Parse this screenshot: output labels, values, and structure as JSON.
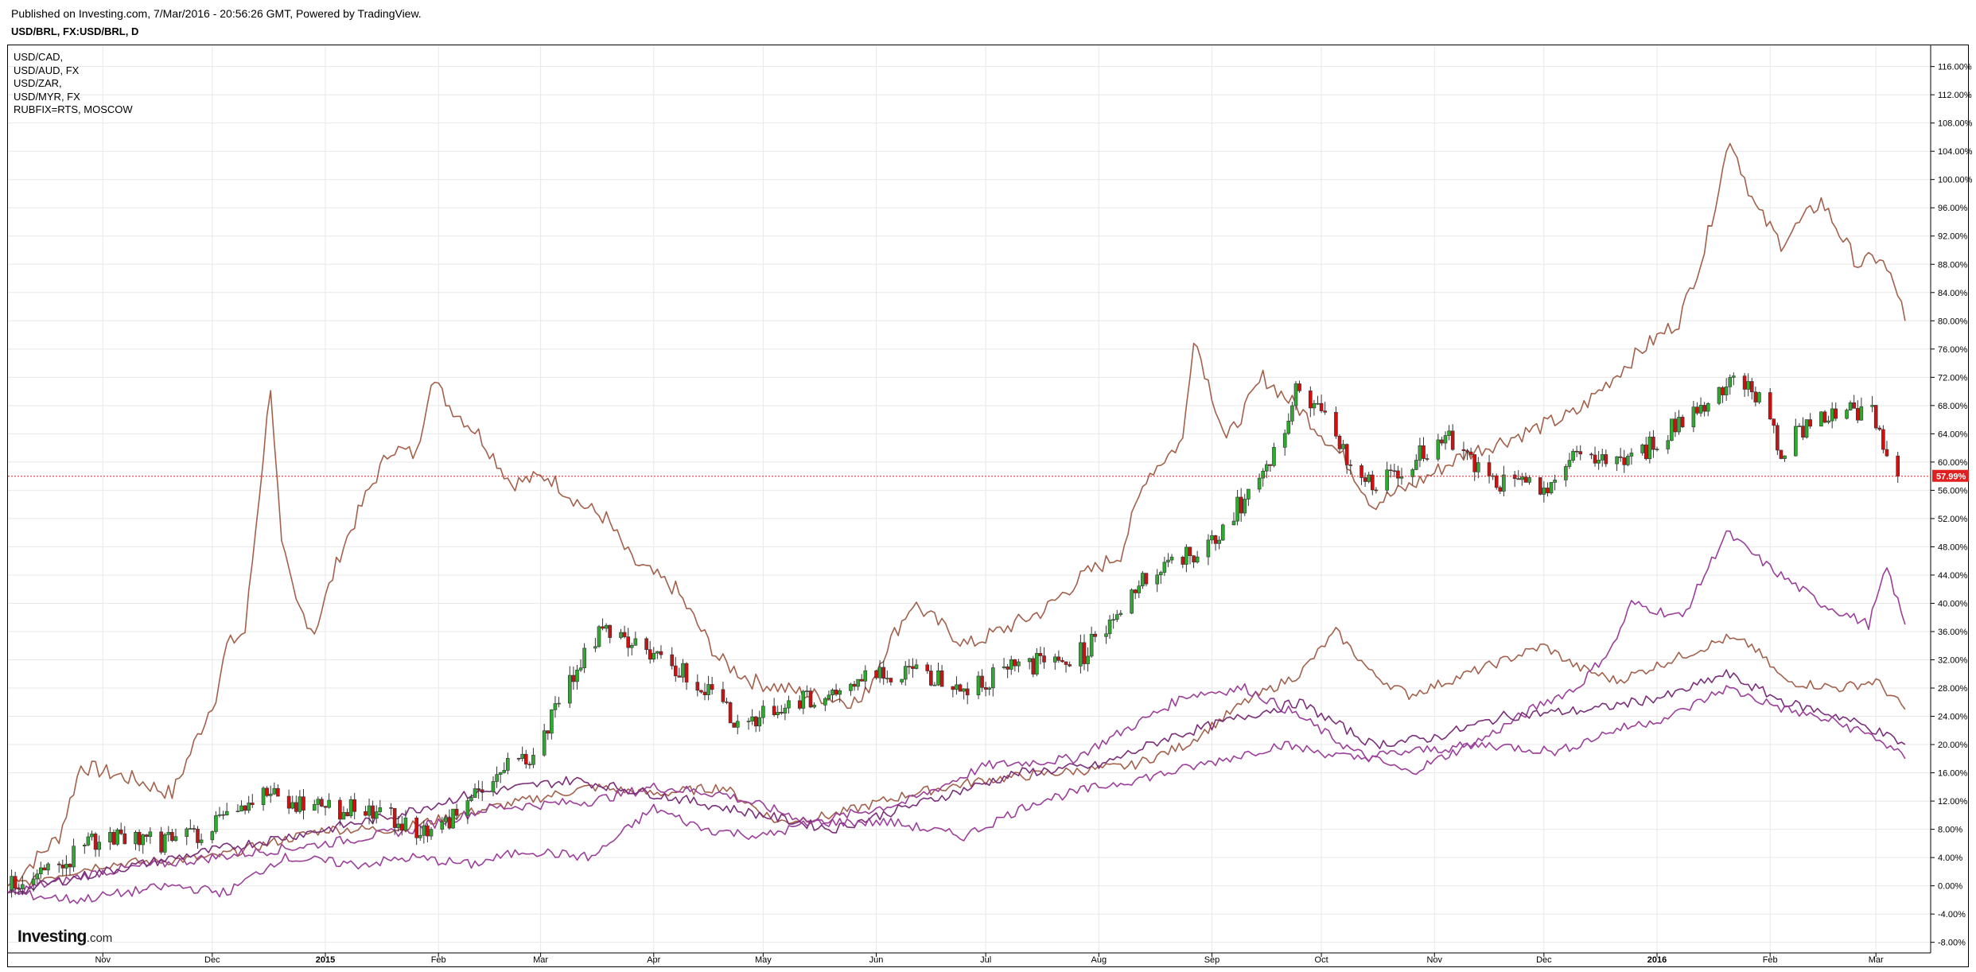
{
  "header": {
    "published": "Published on Investing.com, 7/Mar/2016 - 20:56:26 GMT, Powered by TradingView.",
    "symbol": "USD/BRL, FX:USD/BRL, D"
  },
  "logo": {
    "brand": "Investing",
    "tld": ".com"
  },
  "colors": {
    "up": "#2eaa2e",
    "down": "#cc1111",
    "grid": "#e8e8e8",
    "last_line": "#e02020",
    "last_badge": "#e02020",
    "cad": "#a3614c",
    "aud": "#a3614c",
    "zar": "#a3614c",
    "myr": "#9b3f9b",
    "rub": "#7a2e7a"
  },
  "chart_data": {
    "type": "line",
    "title": "USD/BRL, FX:USD/BRL, D",
    "ylabel": "",
    "y_unit": "%",
    "ylim": [
      -9.5,
      119
    ],
    "y_ticks": [
      -8,
      -4,
      0,
      4,
      8,
      12,
      16,
      20,
      24,
      28,
      32,
      36,
      40,
      44,
      48,
      52,
      56,
      60,
      64,
      68,
      72,
      76,
      80,
      84,
      88,
      92,
      96,
      100,
      104,
      108,
      112,
      116
    ],
    "y_tick_labels": [
      "-8.00%",
      "-4.00%",
      "0.00%",
      "4.00%",
      "8.00%",
      "12.00%",
      "16.00%",
      "20.00%",
      "24.00%",
      "28.00%",
      "32.00%",
      "36.00%",
      "40.00%",
      "44.00%",
      "48.00%",
      "52.00%",
      "56.00%",
      "60.00%",
      "64.00%",
      "68.00%",
      "72.00%",
      "76.00%",
      "80.00%",
      "84.00%",
      "88.00%",
      "92.00%",
      "96.00%",
      "100.00%",
      "104.00%",
      "108.00%",
      "112.00%",
      "116.00%"
    ],
    "x_range": [
      "2014-10-06",
      "2016-03-16"
    ],
    "x_ticks": [
      {
        "date": "2014-11-01",
        "label": "Nov",
        "bold": false
      },
      {
        "date": "2014-12-01",
        "label": "Dec",
        "bold": false
      },
      {
        "date": "2015-01-01",
        "label": "2015",
        "bold": true
      },
      {
        "date": "2015-02-01",
        "label": "Feb",
        "bold": false
      },
      {
        "date": "2015-03-01",
        "label": "Mar",
        "bold": false
      },
      {
        "date": "2015-04-01",
        "label": "Apr",
        "bold": false
      },
      {
        "date": "2015-05-01",
        "label": "May",
        "bold": false
      },
      {
        "date": "2015-06-01",
        "label": "Jun",
        "bold": false
      },
      {
        "date": "2015-07-01",
        "label": "Jul",
        "bold": false
      },
      {
        "date": "2015-08-01",
        "label": "Aug",
        "bold": false
      },
      {
        "date": "2015-09-01",
        "label": "Sep",
        "bold": false
      },
      {
        "date": "2015-10-01",
        "label": "Oct",
        "bold": false
      },
      {
        "date": "2015-11-01",
        "label": "Nov",
        "bold": false
      },
      {
        "date": "2015-12-01",
        "label": "Dec",
        "bold": false
      },
      {
        "date": "2016-01-01",
        "label": "2016",
        "bold": true
      },
      {
        "date": "2016-02-01",
        "label": "Feb",
        "bold": false
      },
      {
        "date": "2016-03-01",
        "label": "Mar",
        "bold": false
      }
    ],
    "last_value": 57.99,
    "last_value_label": "57.99%",
    "grid": true,
    "legend_position": "top-left",
    "legend": [
      "USD/CAD,",
      "USD/AUD, FX",
      "USD/ZAR,",
      "USD/MYR, FX",
      "RUBFIX=RTS, MOSCOW"
    ],
    "main_series": {
      "name": "USD/BRL",
      "anchors": [
        [
          "2014-10-06",
          0
        ],
        [
          "2014-10-20",
          3
        ],
        [
          "2014-11-01",
          7
        ],
        [
          "2014-11-20",
          6
        ],
        [
          "2014-12-05",
          9
        ],
        [
          "2014-12-17",
          13
        ],
        [
          "2014-12-31",
          11
        ],
        [
          "2015-01-15",
          11
        ],
        [
          "2015-01-30",
          7
        ],
        [
          "2015-02-15",
          15
        ],
        [
          "2015-02-28",
          19
        ],
        [
          "2015-03-10",
          30
        ],
        [
          "2015-03-19",
          37
        ],
        [
          "2015-03-31",
          33
        ],
        [
          "2015-04-13",
          29
        ],
        [
          "2015-04-25",
          23
        ],
        [
          "2015-05-12",
          26
        ],
        [
          "2015-05-28",
          29
        ],
        [
          "2015-06-10",
          31
        ],
        [
          "2015-06-25",
          28
        ],
        [
          "2015-07-10",
          31
        ],
        [
          "2015-07-28",
          33
        ],
        [
          "2015-08-12",
          43
        ],
        [
          "2015-08-31",
          48
        ],
        [
          "2015-09-10",
          55
        ],
        [
          "2015-09-20",
          62
        ],
        [
          "2015-09-24",
          72
        ],
        [
          "2015-10-05",
          63
        ],
        [
          "2015-10-14",
          57
        ],
        [
          "2015-11-05",
          63
        ],
        [
          "2015-11-17",
          57
        ],
        [
          "2015-11-30",
          56
        ],
        [
          "2015-12-11",
          61
        ],
        [
          "2015-12-25",
          60
        ],
        [
          "2016-01-05",
          65
        ],
        [
          "2016-01-14",
          68
        ],
        [
          "2016-01-21",
          72
        ],
        [
          "2016-01-28",
          70
        ],
        [
          "2016-02-04",
          62
        ],
        [
          "2016-02-15",
          67
        ],
        [
          "2016-02-29",
          67
        ],
        [
          "2016-03-07",
          58
        ]
      ]
    },
    "series": [
      {
        "name": "RUBFIX=RTS, MOSCOW",
        "color_key": "cad",
        "points": [
          [
            "2014-10-06",
            0
          ],
          [
            "2014-10-20",
            7
          ],
          [
            "2014-10-26",
            17
          ],
          [
            "2014-11-10",
            15
          ],
          [
            "2014-11-20",
            13
          ],
          [
            "2014-12-02",
            27
          ],
          [
            "2014-12-05",
            34
          ],
          [
            "2014-12-10",
            36
          ],
          [
            "2014-12-16",
            66
          ],
          [
            "2014-12-17",
            71
          ],
          [
            "2014-12-20",
            48
          ],
          [
            "2014-12-24",
            40
          ],
          [
            "2014-12-29",
            36
          ],
          [
            "2015-01-05",
            47
          ],
          [
            "2015-01-12",
            55
          ],
          [
            "2015-01-19",
            62
          ],
          [
            "2015-01-26",
            61
          ],
          [
            "2015-01-30",
            72
          ],
          [
            "2015-02-04",
            68
          ],
          [
            "2015-02-12",
            64
          ],
          [
            "2015-02-21",
            57
          ],
          [
            "2015-03-03",
            58
          ],
          [
            "2015-03-12",
            54
          ],
          [
            "2015-03-19",
            52
          ],
          [
            "2015-03-26",
            46
          ],
          [
            "2015-04-07",
            42
          ],
          [
            "2015-04-19",
            32
          ],
          [
            "2015-04-28",
            29
          ],
          [
            "2015-05-14",
            27
          ],
          [
            "2015-05-28",
            26
          ],
          [
            "2015-06-04",
            34
          ],
          [
            "2015-06-11",
            40
          ],
          [
            "2015-06-26",
            34
          ],
          [
            "2015-07-17",
            39
          ],
          [
            "2015-07-28",
            44
          ],
          [
            "2015-08-07",
            47
          ],
          [
            "2015-08-14",
            58
          ],
          [
            "2015-08-24",
            63
          ],
          [
            "2015-08-27",
            78
          ],
          [
            "2015-09-05",
            63
          ],
          [
            "2015-09-15",
            72
          ],
          [
            "2015-09-26",
            67
          ],
          [
            "2015-10-08",
            60
          ],
          [
            "2015-10-15",
            54
          ],
          [
            "2015-10-27",
            57
          ],
          [
            "2015-11-09",
            61
          ],
          [
            "2015-11-25",
            64
          ],
          [
            "2015-12-10",
            67
          ],
          [
            "2015-12-28",
            76
          ],
          [
            "2016-01-07",
            80
          ],
          [
            "2016-01-14",
            90
          ],
          [
            "2016-01-21",
            106
          ],
          [
            "2016-01-28",
            96
          ],
          [
            "2016-02-04",
            91
          ],
          [
            "2016-02-15",
            97
          ],
          [
            "2016-02-25",
            88
          ],
          [
            "2016-03-02",
            89
          ],
          [
            "2016-03-07",
            84
          ],
          [
            "2016-03-09",
            80
          ]
        ]
      },
      {
        "name": "USD/ZAR,",
        "color_key": "zar",
        "points": [
          [
            "2014-10-06",
            0
          ],
          [
            "2014-11-01",
            3
          ],
          [
            "2014-12-01",
            4
          ],
          [
            "2015-01-01",
            8
          ],
          [
            "2015-01-20",
            8
          ],
          [
            "2015-02-15",
            11
          ],
          [
            "2015-03-15",
            14
          ],
          [
            "2015-04-01",
            13
          ],
          [
            "2015-04-20",
            14
          ],
          [
            "2015-05-05",
            9
          ],
          [
            "2015-05-20",
            10
          ],
          [
            "2015-06-10",
            13
          ],
          [
            "2015-07-01",
            15
          ],
          [
            "2015-07-20",
            16
          ],
          [
            "2015-08-10",
            17
          ],
          [
            "2015-08-25",
            20
          ],
          [
            "2015-09-10",
            26
          ],
          [
            "2015-09-25",
            30
          ],
          [
            "2015-10-05",
            36
          ],
          [
            "2015-10-15",
            30
          ],
          [
            "2015-10-25",
            27
          ],
          [
            "2015-11-10",
            30
          ],
          [
            "2015-12-01",
            34
          ],
          [
            "2015-12-10",
            31
          ],
          [
            "2015-12-21",
            29
          ],
          [
            "2016-01-05",
            32
          ],
          [
            "2016-01-20",
            35
          ],
          [
            "2016-01-27",
            34
          ],
          [
            "2016-02-05",
            29
          ],
          [
            "2016-02-20",
            28
          ],
          [
            "2016-03-01",
            29
          ],
          [
            "2016-03-09",
            25
          ]
        ]
      },
      {
        "name": "USD/MYR, FX",
        "color_key": "myr",
        "points": [
          [
            "2014-10-06",
            -1
          ],
          [
            "2014-11-01",
            2
          ],
          [
            "2014-12-01",
            4
          ],
          [
            "2015-01-01",
            6
          ],
          [
            "2015-01-25",
            8
          ],
          [
            "2015-02-15",
            11
          ],
          [
            "2015-03-15",
            12
          ],
          [
            "2015-04-01",
            14
          ],
          [
            "2015-04-20",
            13
          ],
          [
            "2015-05-15",
            9
          ],
          [
            "2015-06-10",
            12
          ],
          [
            "2015-07-01",
            17
          ],
          [
            "2015-07-25",
            18
          ],
          [
            "2015-08-15",
            24
          ],
          [
            "2015-08-25",
            27
          ],
          [
            "2015-09-10",
            28
          ],
          [
            "2015-09-25",
            24
          ],
          [
            "2015-10-10",
            19
          ],
          [
            "2015-10-25",
            16
          ],
          [
            "2015-11-15",
            21
          ],
          [
            "2015-12-01",
            26
          ],
          [
            "2015-12-10",
            28
          ],
          [
            "2015-12-20",
            34
          ],
          [
            "2015-12-25",
            40
          ],
          [
            "2016-01-08",
            38
          ],
          [
            "2016-01-20",
            50
          ],
          [
            "2016-02-01",
            45
          ],
          [
            "2016-02-15",
            40
          ],
          [
            "2016-02-28",
            37
          ],
          [
            "2016-03-04",
            45
          ],
          [
            "2016-03-09",
            37
          ]
        ]
      },
      {
        "name": "USD/CAD,",
        "color_key": "rub",
        "points": [
          [
            "2014-10-06",
            -1
          ],
          [
            "2014-11-01",
            2
          ],
          [
            "2014-12-01",
            5
          ],
          [
            "2015-01-01",
            8
          ],
          [
            "2015-01-20",
            10
          ],
          [
            "2015-02-10",
            13
          ],
          [
            "2015-03-10",
            15
          ],
          [
            "2015-04-01",
            13
          ],
          [
            "2015-05-01",
            10
          ],
          [
            "2015-05-20",
            8
          ],
          [
            "2015-06-15",
            12
          ],
          [
            "2015-07-10",
            16
          ],
          [
            "2015-08-01",
            17
          ],
          [
            "2015-08-20",
            21
          ],
          [
            "2015-09-10",
            24
          ],
          [
            "2015-09-25",
            26
          ],
          [
            "2015-10-15",
            20
          ],
          [
            "2015-11-01",
            21
          ],
          [
            "2015-11-20",
            24
          ],
          [
            "2015-12-15",
            25
          ],
          [
            "2016-01-05",
            27
          ],
          [
            "2016-01-20",
            30
          ],
          [
            "2016-02-05",
            26
          ],
          [
            "2016-02-20",
            24
          ],
          [
            "2016-03-01",
            22
          ],
          [
            "2016-03-09",
            20
          ]
        ]
      },
      {
        "name": "USD/AUD, FX",
        "color_key": "myr",
        "points": [
          [
            "2014-10-06",
            -1
          ],
          [
            "2014-10-25",
            -2
          ],
          [
            "2014-11-20",
            0
          ],
          [
            "2014-12-05",
            -1
          ],
          [
            "2014-12-20",
            4
          ],
          [
            "2015-01-10",
            3
          ],
          [
            "2015-01-25",
            4
          ],
          [
            "2015-02-10",
            3
          ],
          [
            "2015-02-25",
            5
          ],
          [
            "2015-03-15",
            4
          ],
          [
            "2015-04-01",
            11
          ],
          [
            "2015-04-15",
            8
          ],
          [
            "2015-05-01",
            7
          ],
          [
            "2015-05-15",
            9
          ],
          [
            "2015-06-05",
            9
          ],
          [
            "2015-06-25",
            7
          ],
          [
            "2015-07-15",
            12
          ],
          [
            "2015-08-01",
            14
          ],
          [
            "2015-08-20",
            16
          ],
          [
            "2015-09-05",
            18
          ],
          [
            "2015-09-20",
            20
          ],
          [
            "2015-10-10",
            18
          ],
          [
            "2015-10-25",
            19
          ],
          [
            "2015-11-15",
            20
          ],
          [
            "2015-12-05",
            19
          ],
          [
            "2015-12-20",
            22
          ],
          [
            "2016-01-05",
            24
          ],
          [
            "2016-01-20",
            28
          ],
          [
            "2016-02-05",
            25
          ],
          [
            "2016-02-20",
            23
          ],
          [
            "2016-03-01",
            21
          ],
          [
            "2016-03-09",
            18
          ]
        ]
      }
    ]
  }
}
